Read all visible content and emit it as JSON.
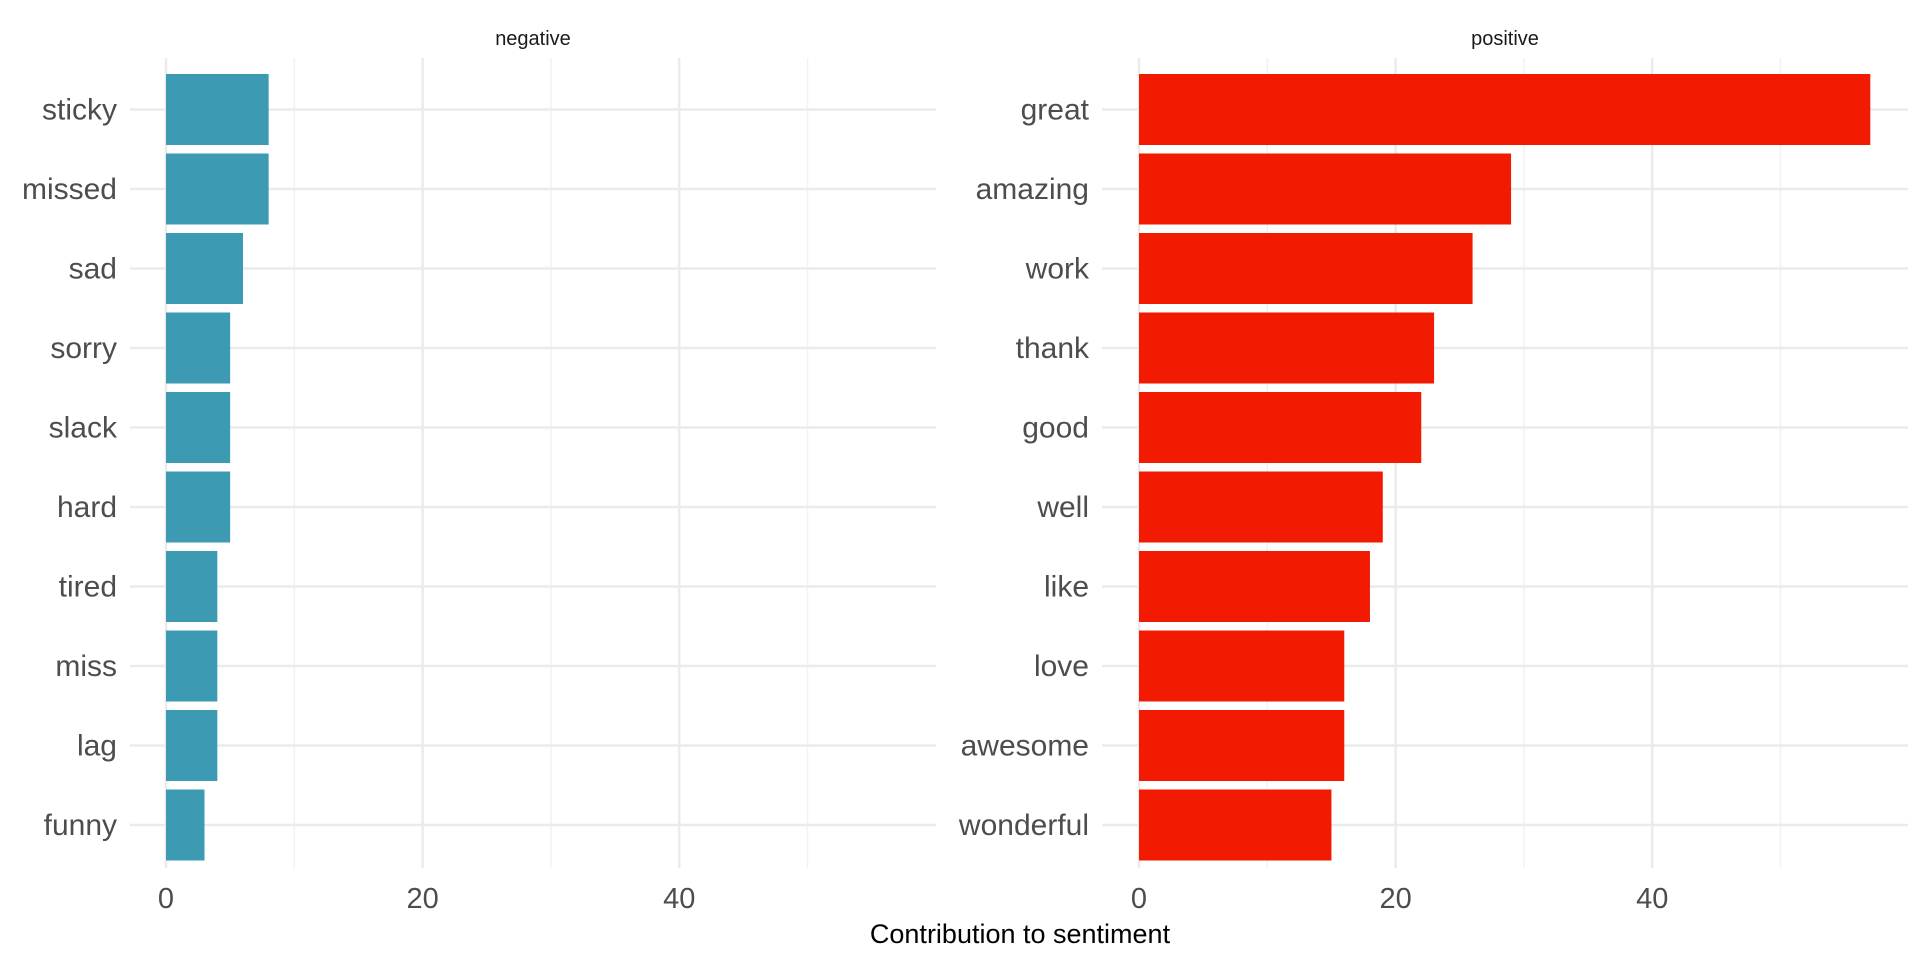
{
  "chart_data": {
    "type": "bar",
    "orientation": "horizontal",
    "facets": [
      "negative",
      "positive"
    ],
    "xlabel": "Contribution to sentiment",
    "ylabel": "",
    "title": "",
    "xlim": [
      0,
      57
    ],
    "x_ticks": [
      0,
      20,
      40
    ],
    "x_minor_ticks": [
      10,
      30,
      50
    ],
    "grid": true,
    "legend": "none",
    "panels": [
      {
        "facet": "negative",
        "color": "#3C9AB2",
        "categories": [
          "sticky",
          "missed",
          "sad",
          "sorry",
          "slack",
          "hard",
          "tired",
          "miss",
          "lag",
          "funny"
        ],
        "values": [
          8,
          8,
          6,
          5,
          5,
          5,
          4,
          4,
          4,
          3
        ]
      },
      {
        "facet": "positive",
        "color": "#F21A00",
        "categories": [
          "great",
          "amazing",
          "work",
          "thank",
          "good",
          "well",
          "like",
          "love",
          "awesome",
          "wonderful"
        ],
        "values": [
          57,
          29,
          26,
          23,
          22,
          19,
          18,
          16,
          16,
          15
        ]
      }
    ]
  },
  "colors": {
    "background": "#ffffff",
    "grid_major": "#ebebeb",
    "grid_minor": "#f2f2f2",
    "axis_text": "#4d4d4d"
  }
}
